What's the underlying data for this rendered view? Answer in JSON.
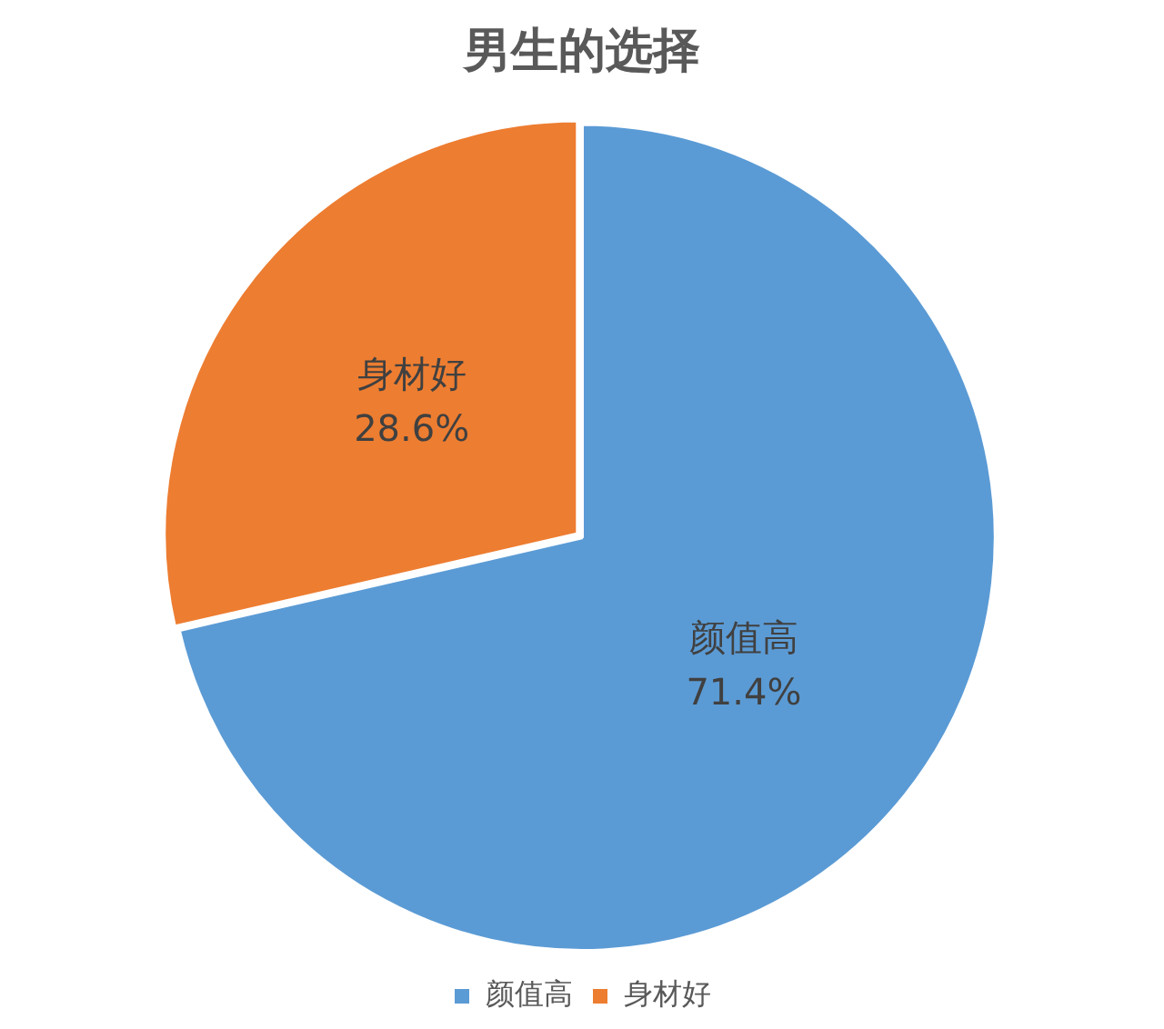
{
  "chart_data": {
    "type": "pie",
    "title": "男生的选择",
    "categories": [
      "颜值高",
      "身材好"
    ],
    "values": [
      71.4,
      28.6
    ],
    "colors": [
      "#5b9bd5",
      "#ed7d31"
    ],
    "value_labels": [
      "71.4%",
      "28.6%"
    ],
    "legend": "bottom"
  }
}
